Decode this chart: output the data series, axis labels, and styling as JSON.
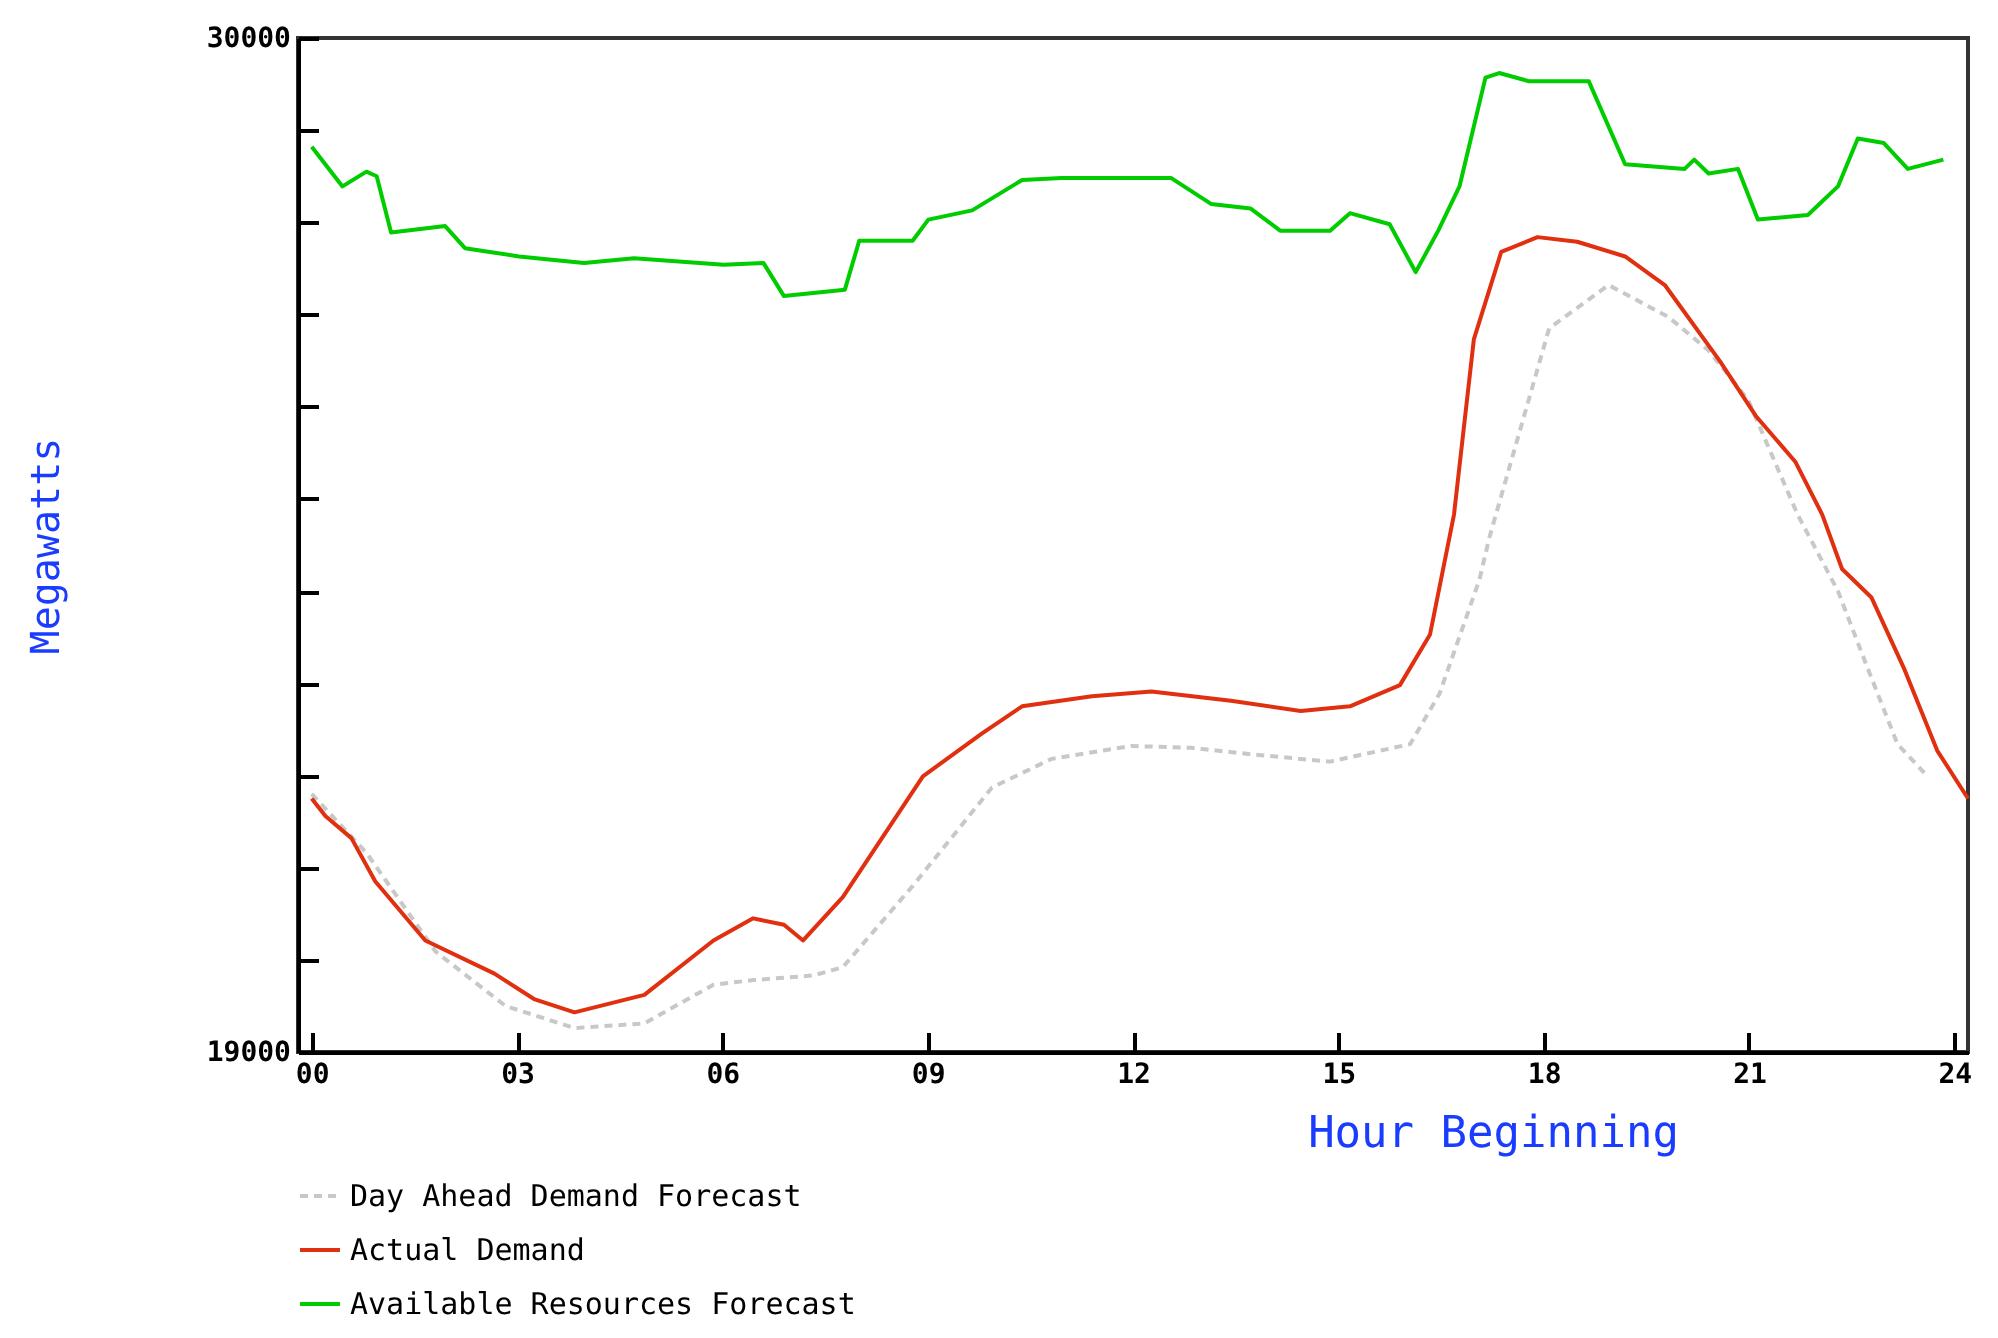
{
  "chart_data": {
    "type": "line",
    "xlabel": "Hour Beginning",
    "ylabel": "Megawatts",
    "xlim": [
      -0.2,
      24.2
    ],
    "ylim": [
      19000,
      30000
    ],
    "xticks": [
      {
        "value": 0,
        "label": "00"
      },
      {
        "value": 3,
        "label": "03"
      },
      {
        "value": 6,
        "label": "06"
      },
      {
        "value": 9,
        "label": "09"
      },
      {
        "value": 12,
        "label": "12"
      },
      {
        "value": 15,
        "label": "15"
      },
      {
        "value": 18,
        "label": "18"
      },
      {
        "value": 21,
        "label": "21"
      },
      {
        "value": 24,
        "label": "24"
      }
    ],
    "yticks": [
      19000,
      {
        "value": 20000,
        "label": null
      },
      {
        "value": 21000,
        "label": null
      },
      {
        "value": 22000,
        "label": null
      },
      {
        "value": 23000,
        "label": null
      },
      {
        "value": 24000,
        "label": null
      },
      {
        "value": 25000,
        "label": null
      },
      {
        "value": 26000,
        "label": null
      },
      {
        "value": 27000,
        "label": null
      },
      {
        "value": 28000,
        "label": null
      },
      {
        "value": 29000,
        "label": null
      },
      30000
    ],
    "grid": false,
    "legend": "bottom",
    "marker": "none",
    "series": [
      {
        "name": "Day Ahead Demand Forecast",
        "color": "#c8c8c8",
        "line_style": "dashed",
        "x": [
          0,
          0.8,
          1.81,
          2.83,
          3.84,
          4.86,
          5.87,
          6.45,
          7.33,
          7.76,
          8.78,
          9.94,
          10.81,
          11.97,
          12.85,
          13.72,
          14.88,
          16.05,
          16.48,
          17.06,
          17.21,
          18.08,
          18.95,
          19.83,
          20.41,
          20.99,
          21.71,
          22.3,
          22.73,
          23.17,
          23.61
        ],
        "values": [
          21800,
          21160,
          20090,
          19500,
          19260,
          19310,
          19730,
          19780,
          19830,
          19920,
          20800,
          21870,
          22180,
          22320,
          22300,
          22230,
          22150,
          22340,
          22890,
          24120,
          24590,
          26850,
          27320,
          26970,
          26610,
          26070,
          24830,
          24000,
          23170,
          22340,
          21990
        ]
      },
      {
        "name": "Actual Demand",
        "color": "#e03010",
        "line_style": "solid",
        "x": [
          0,
          0.2,
          0.58,
          0.93,
          1.66,
          2.67,
          3.26,
          3.84,
          4.86,
          5.87,
          6.45,
          6.9,
          7.18,
          7.76,
          8.93,
          9.8,
          10.38,
          11.4,
          12.27,
          13.43,
          14.45,
          15.17,
          15.9,
          16.34,
          16.69,
          16.98,
          17.38,
          17.91,
          18.49,
          19.19,
          19.77,
          20.58,
          21.1,
          21.68,
          22.07,
          22.36,
          22.79,
          23.26,
          23.75,
          24.2
        ],
        "values": [
          21750,
          21560,
          21320,
          20850,
          20210,
          19850,
          19570,
          19430,
          19620,
          20210,
          20450,
          20380,
          20210,
          20680,
          21990,
          22460,
          22750,
          22860,
          22910,
          22810,
          22700,
          22750,
          22980,
          23530,
          24830,
          26730,
          27680,
          27840,
          27790,
          27630,
          27320,
          26490,
          25900,
          25400,
          24830,
          24240,
          23930,
          23170,
          22270,
          21750
        ]
      },
      {
        "name": "Available Resources Forecast",
        "color": "#00cc00",
        "line_style": "solid",
        "x": [
          0,
          0.45,
          0.8,
          0.95,
          1.16,
          1.95,
          2.24,
          3.03,
          3.98,
          4.71,
          6.02,
          6.6,
          6.9,
          7.79,
          8.0,
          8.78,
          9.01,
          9.65,
          10.38,
          10.96,
          12.56,
          13.14,
          13.72,
          14.15,
          14.88,
          15.17,
          15.75,
          16.13,
          16.46,
          16.77,
          17.15,
          17.35,
          17.79,
          18.66,
          19.19,
          20.06,
          20.2,
          20.41,
          20.84,
          21.13,
          21.86,
          22.3,
          22.59,
          22.97,
          23.32,
          23.84
        ],
        "values": [
          28820,
          28390,
          28550,
          28500,
          27890,
          27960,
          27720,
          27630,
          27560,
          27610,
          27540,
          27560,
          27200,
          27270,
          27800,
          27800,
          28030,
          28130,
          28460,
          28480,
          28480,
          28200,
          28150,
          27910,
          27910,
          28100,
          27980,
          27460,
          27910,
          28390,
          29570,
          29620,
          29530,
          29530,
          28630,
          28580,
          28680,
          28530,
          28580,
          28030,
          28080,
          28390,
          28910,
          28860,
          28580,
          28680
        ]
      }
    ]
  }
}
